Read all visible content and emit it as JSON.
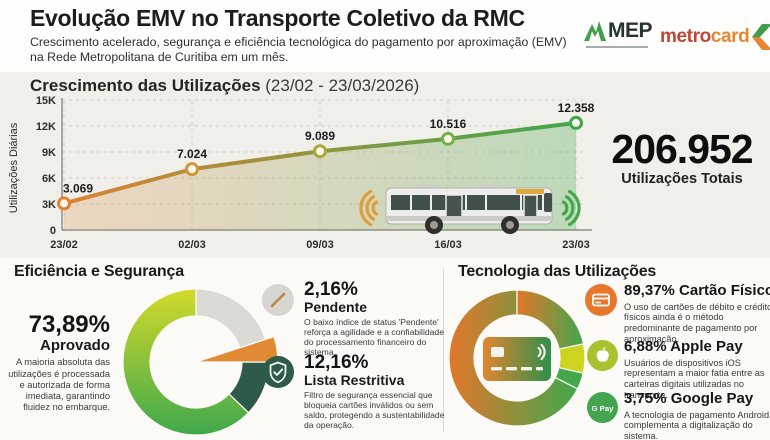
{
  "header": {
    "title": "Evolução EMV no Transporte Coletivo da RMC",
    "subtitle_line1": "Crescimento acelerado, segurança e eficiência tecnológica do pagamento por aproximação (EMV)",
    "subtitle_line2": "na Rede Metropolitana de Curitiba em um mês.",
    "logos": {
      "amep_text": "MEP",
      "metrocard_metro": "metro",
      "metrocard_card": "card"
    }
  },
  "chart_section": {
    "title": "Crescimento das Utilizações",
    "period": "(23/02 - 23/03/2026)",
    "total_value": "206.952",
    "total_label": "Utilizações Totais"
  },
  "chart_data": [
    {
      "type": "line",
      "title": "Crescimento das Utilizações (23/02 - 23/03/2026)",
      "x": [
        "23/02",
        "02/03",
        "09/03",
        "16/03",
        "23/03"
      ],
      "values": [
        3069,
        7024,
        9089,
        10516,
        12358
      ],
      "point_labels": [
        "3.069",
        "7.024",
        "9.089",
        "10.516",
        "12.358"
      ],
      "point_colors": [
        "#dd8233",
        "#d0983a",
        "#a9aa3e",
        "#74b046",
        "#3fa84c"
      ],
      "ylabel": "Utilizações Diárias",
      "ylim": [
        0,
        15000
      ],
      "yticks": [
        "0",
        "3K",
        "6K",
        "9K",
        "12K",
        "15K"
      ],
      "grid": true,
      "area": true,
      "line_color_start": "#dd8233",
      "line_color_end": "#3fa84c"
    },
    {
      "type": "pie",
      "title": "Eficiência e Segurança",
      "slices": [
        {
          "label": "Aprovado",
          "value": 73.89,
          "color_start": "#d3da29",
          "color_end": "#3fa84c",
          "grad_dir": "v",
          "a0": 134,
          "a1": 360
        },
        {
          "label": "Lista Restritiva",
          "value": 12.16,
          "color": "#2d5a49",
          "a0": 90,
          "a1": 134
        },
        {
          "label": "",
          "value": 11.79,
          "color": "#dad9d4",
          "a0": 0,
          "a1": 72
        },
        {
          "label": "Pendente",
          "value": 2.16,
          "color": "#e08b33",
          "a0": 72,
          "a1": 90,
          "exploded": true
        }
      ]
    },
    {
      "type": "pie",
      "title": "Tecnologia das Utilizações",
      "slices": [
        {
          "label": "Cartão Físico",
          "value": 89.37,
          "color_start": "#e2762b",
          "color_end": "#3fa84c",
          "grad_dir": "h",
          "a0": 117,
          "a1": 438
        },
        {
          "label": "Apple Pay",
          "value": 6.88,
          "color": "#cdd420",
          "a0": 78,
          "a1": 103
        },
        {
          "label": "Google Pay",
          "value": 3.75,
          "color": "#45a74b",
          "a0": 103,
          "a1": 117
        }
      ]
    }
  ],
  "efficiency": {
    "heading": "Eficiência e Segurança",
    "approved": {
      "value": "73,89%",
      "label": "Aprovado",
      "desc": "A maioria absoluta das utilizações é processada e autorizada de forma imediata, garantindo fluidez no embarque."
    },
    "pending": {
      "value": "2,16%",
      "label": "Pendente",
      "desc": "O baixo índice de status 'Pendente' reforça a agilidade e a confiabilidade do processamento financeiro do sistema."
    },
    "restrictive": {
      "value": "12,16%",
      "label": "Lista Restritiva",
      "desc": "Filtro de segurança essencial que bloqueia cartões inválidos ou sem saldo, protegendo a sustentabilidade da operação."
    }
  },
  "technology": {
    "heading": "Tecnologia das Utilizações",
    "items": [
      {
        "value": "89,37%",
        "label": "Cartão Físico",
        "desc": "O uso de cartões de débito e crédito físicos ainda é o método predominante de pagamento por aproximação.",
        "icon": "card-icon",
        "color": "#e8772e"
      },
      {
        "value": "6,88%",
        "label": "Apple Pay",
        "desc": "Usuários de dispositivos iOS representam a maior fatia entre as carteiras digitais utilizadas no transporte.",
        "icon": "apple-pay-icon",
        "color": "#a8c32f"
      },
      {
        "value": "3,75%",
        "label": "Google Pay",
        "desc": "A tecnologia de pagamento Android complementa a digitalização do sistema.",
        "icon": "google-pay-icon",
        "icon_text": "G Pay",
        "color": "#43a64f"
      }
    ]
  }
}
